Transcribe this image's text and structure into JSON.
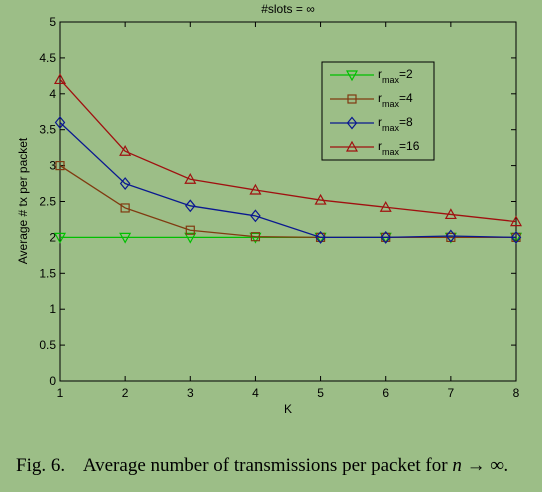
{
  "chart_data": {
    "type": "line",
    "title": "#slots = ∞",
    "xlabel": "K",
    "ylabel": "Average # tx per packet",
    "x": [
      1,
      2,
      3,
      4,
      5,
      6,
      7,
      8
    ],
    "xlim": [
      1,
      8
    ],
    "ylim": [
      0,
      5
    ],
    "xticks": [
      "1",
      "2",
      "3",
      "4",
      "5",
      "6",
      "7",
      "8"
    ],
    "yticks": [
      "0",
      "0.5",
      "1",
      "1.5",
      "2",
      "2.5",
      "3",
      "3.5",
      "4",
      "4.5",
      "5"
    ],
    "legend_position": "top-right",
    "grid": false,
    "series": [
      {
        "label_main": "r",
        "label_sub": "max",
        "label_suffix": "=2",
        "color": "#00c000",
        "marker": "triangle-down",
        "values": [
          2.0,
          2.0,
          2.0,
          2.0,
          2.0,
          2.0,
          2.0,
          2.0
        ]
      },
      {
        "label_main": "r",
        "label_sub": "max",
        "label_suffix": "=4",
        "color": "#803a10",
        "marker": "square",
        "values": [
          3.0,
          2.41,
          2.1,
          2.01,
          2.0,
          2.0,
          2.0,
          2.0
        ]
      },
      {
        "label_main": "r",
        "label_sub": "max",
        "label_suffix": "=8",
        "color": "#0a1890",
        "marker": "diamond",
        "values": [
          3.6,
          2.75,
          2.44,
          2.3,
          2.0,
          2.0,
          2.02,
          2.0
        ]
      },
      {
        "label_main": "r",
        "label_sub": "max",
        "label_suffix": "=16",
        "color": "#a01010",
        "marker": "triangle-up",
        "values": [
          4.2,
          3.2,
          2.81,
          2.66,
          2.52,
          2.42,
          2.32,
          2.22
        ]
      }
    ]
  },
  "caption": {
    "fig_label": "Fig. 6.",
    "text": "Average number of transmissions per packet for",
    "math": "n → ∞."
  }
}
